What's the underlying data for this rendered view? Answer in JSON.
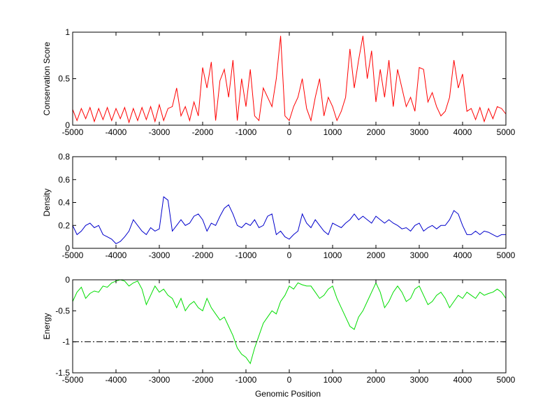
{
  "figure": {
    "xlabel": "Genomic Position"
  },
  "chart_data": [
    {
      "type": "line",
      "ylabel": "Conservation Score",
      "xlim": [
        -5000,
        5000
      ],
      "ylim": [
        0,
        1
      ],
      "xticks": [
        -5000,
        -4000,
        -3000,
        -2000,
        -1000,
        0,
        1000,
        2000,
        3000,
        4000,
        5000
      ],
      "yticks": [
        0,
        0.5,
        1
      ],
      "ytick_labels": [
        "0",
        "0.5",
        "1"
      ],
      "grid": false,
      "series": [
        {
          "color": "#ff0000",
          "x": [
            -5000,
            -4900,
            -4800,
            -4700,
            -4600,
            -4500,
            -4400,
            -4300,
            -4200,
            -4100,
            -4000,
            -3900,
            -3800,
            -3700,
            -3600,
            -3500,
            -3400,
            -3300,
            -3200,
            -3100,
            -3000,
            -2900,
            -2800,
            -2700,
            -2600,
            -2500,
            -2400,
            -2300,
            -2200,
            -2100,
            -2000,
            -1900,
            -1800,
            -1700,
            -1600,
            -1500,
            -1400,
            -1300,
            -1200,
            -1100,
            -1000,
            -900,
            -800,
            -700,
            -600,
            -500,
            -400,
            -300,
            -200,
            -100,
            0,
            100,
            200,
            300,
            400,
            500,
            600,
            700,
            800,
            900,
            1000,
            1100,
            1200,
            1300,
            1400,
            1500,
            1600,
            1700,
            1800,
            1900,
            2000,
            2100,
            2200,
            2300,
            2400,
            2500,
            2600,
            2700,
            2800,
            2900,
            3000,
            3100,
            3200,
            3300,
            3400,
            3500,
            3600,
            3700,
            3800,
            3900,
            4000,
            4100,
            4200,
            4300,
            4400,
            4500,
            4600,
            4700,
            4800,
            4900,
            5000
          ],
          "y": [
            0.17,
            0.05,
            0.18,
            0.07,
            0.19,
            0.04,
            0.18,
            0.06,
            0.19,
            0.05,
            0.18,
            0.07,
            0.19,
            0.03,
            0.18,
            0.05,
            0.19,
            0.06,
            0.2,
            0.04,
            0.22,
            0.05,
            0.18,
            0.2,
            0.4,
            0.1,
            0.2,
            0.05,
            0.25,
            0.1,
            0.62,
            0.4,
            0.68,
            0.05,
            0.48,
            0.6,
            0.3,
            0.7,
            0.05,
            0.5,
            0.2,
            0.6,
            0.1,
            0.05,
            0.4,
            0.3,
            0.2,
            0.5,
            0.96,
            0.1,
            0.05,
            0.2,
            0.3,
            0.5,
            0.18,
            0.05,
            0.3,
            0.5,
            0.1,
            0.3,
            0.2,
            0.05,
            0.15,
            0.3,
            0.82,
            0.4,
            0.7,
            0.96,
            0.5,
            0.8,
            0.25,
            0.6,
            0.3,
            0.7,
            0.2,
            0.6,
            0.4,
            0.2,
            0.3,
            0.15,
            0.62,
            0.6,
            0.25,
            0.35,
            0.2,
            0.1,
            0.15,
            0.3,
            0.7,
            0.4,
            0.55,
            0.15,
            0.18,
            0.06,
            0.19,
            0.04,
            0.18,
            0.07,
            0.2,
            0.18,
            0.12
          ]
        }
      ]
    },
    {
      "type": "line",
      "ylabel": "Density",
      "xlim": [
        -5000,
        5000
      ],
      "ylim": [
        0,
        0.8
      ],
      "xticks": [
        -5000,
        -4000,
        -3000,
        -2000,
        -1000,
        0,
        1000,
        2000,
        3000,
        4000,
        5000
      ],
      "yticks": [
        0,
        0.2,
        0.4,
        0.6,
        0.8
      ],
      "ytick_labels": [
        "0",
        "0.2",
        "0.4",
        "0.6",
        "0.8"
      ],
      "grid": false,
      "series": [
        {
          "color": "#0000cc",
          "x": [
            -5000,
            -4900,
            -4800,
            -4700,
            -4600,
            -4500,
            -4400,
            -4300,
            -4200,
            -4100,
            -4000,
            -3900,
            -3800,
            -3700,
            -3600,
            -3500,
            -3400,
            -3300,
            -3200,
            -3100,
            -3000,
            -2900,
            -2800,
            -2700,
            -2600,
            -2500,
            -2400,
            -2300,
            -2200,
            -2100,
            -2000,
            -1900,
            -1800,
            -1700,
            -1600,
            -1500,
            -1400,
            -1300,
            -1200,
            -1100,
            -1000,
            -900,
            -800,
            -700,
            -600,
            -500,
            -400,
            -300,
            -200,
            -100,
            0,
            100,
            200,
            300,
            400,
            500,
            600,
            700,
            800,
            900,
            1000,
            1100,
            1200,
            1300,
            1400,
            1500,
            1600,
            1700,
            1800,
            1900,
            2000,
            2100,
            2200,
            2300,
            2400,
            2500,
            2600,
            2700,
            2800,
            2900,
            3000,
            3100,
            3200,
            3300,
            3400,
            3500,
            3600,
            3700,
            3800,
            3900,
            4000,
            4100,
            4200,
            4300,
            4400,
            4500,
            4600,
            4700,
            4800,
            4900,
            5000
          ],
          "y": [
            0.2,
            0.12,
            0.15,
            0.2,
            0.22,
            0.18,
            0.2,
            0.12,
            0.1,
            0.08,
            0.04,
            0.06,
            0.1,
            0.15,
            0.25,
            0.2,
            0.15,
            0.12,
            0.18,
            0.15,
            0.17,
            0.45,
            0.42,
            0.15,
            0.2,
            0.25,
            0.2,
            0.22,
            0.28,
            0.3,
            0.25,
            0.15,
            0.22,
            0.2,
            0.28,
            0.35,
            0.38,
            0.3,
            0.2,
            0.18,
            0.22,
            0.2,
            0.25,
            0.18,
            0.2,
            0.28,
            0.3,
            0.12,
            0.15,
            0.1,
            0.08,
            0.12,
            0.15,
            0.3,
            0.22,
            0.18,
            0.25,
            0.2,
            0.15,
            0.12,
            0.22,
            0.2,
            0.18,
            0.22,
            0.25,
            0.3,
            0.25,
            0.28,
            0.25,
            0.22,
            0.28,
            0.25,
            0.22,
            0.25,
            0.22,
            0.2,
            0.17,
            0.18,
            0.15,
            0.2,
            0.22,
            0.15,
            0.18,
            0.2,
            0.17,
            0.2,
            0.2,
            0.25,
            0.33,
            0.3,
            0.2,
            0.12,
            0.12,
            0.15,
            0.12,
            0.15,
            0.14,
            0.12,
            0.1,
            0.12,
            0.12
          ]
        }
      ]
    },
    {
      "type": "line",
      "ylabel": "Energy",
      "xlim": [
        -5000,
        5000
      ],
      "ylim": [
        -1.5,
        0
      ],
      "xticks": [
        -5000,
        -4000,
        -3000,
        -2000,
        -1000,
        0,
        1000,
        2000,
        3000,
        4000,
        5000
      ],
      "yticks": [
        -1.5,
        -1,
        -0.5,
        0
      ],
      "ytick_labels": [
        "-1.5",
        "-1",
        "-0.5",
        "0"
      ],
      "grid": false,
      "reference_line": {
        "y": -1,
        "style": "dash-dot",
        "color": "#000000"
      },
      "series": [
        {
          "color": "#00dd00",
          "x": [
            -5000,
            -4900,
            -4800,
            -4700,
            -4600,
            -4500,
            -4400,
            -4300,
            -4200,
            -4100,
            -4000,
            -3900,
            -3800,
            -3700,
            -3600,
            -3500,
            -3400,
            -3300,
            -3200,
            -3100,
            -3000,
            -2900,
            -2800,
            -2700,
            -2600,
            -2500,
            -2400,
            -2300,
            -2200,
            -2100,
            -2000,
            -1900,
            -1800,
            -1700,
            -1600,
            -1500,
            -1400,
            -1300,
            -1200,
            -1100,
            -1000,
            -900,
            -800,
            -700,
            -600,
            -500,
            -400,
            -300,
            -200,
            -100,
            0,
            100,
            200,
            300,
            400,
            500,
            600,
            700,
            800,
            900,
            1000,
            1100,
            1200,
            1300,
            1400,
            1500,
            1600,
            1700,
            1800,
            1900,
            2000,
            2100,
            2200,
            2300,
            2400,
            2500,
            2600,
            2700,
            2800,
            2900,
            3000,
            3100,
            3200,
            3300,
            3400,
            3500,
            3600,
            3700,
            3800,
            3900,
            4000,
            4100,
            4200,
            4300,
            4400,
            4500,
            4600,
            4700,
            4800,
            4900,
            5000
          ],
          "y": [
            -0.35,
            -0.2,
            -0.12,
            -0.3,
            -0.22,
            -0.18,
            -0.2,
            -0.1,
            -0.12,
            -0.05,
            -0.02,
            0,
            -0.02,
            -0.1,
            -0.05,
            -0.02,
            -0.15,
            -0.4,
            -0.25,
            -0.1,
            -0.2,
            -0.15,
            -0.25,
            -0.3,
            -0.45,
            -0.3,
            -0.5,
            -0.4,
            -0.35,
            -0.45,
            -0.5,
            -0.3,
            -0.45,
            -0.55,
            -0.65,
            -0.6,
            -0.75,
            -0.9,
            -1.1,
            -1.2,
            -1.25,
            -1.35,
            -1.1,
            -0.9,
            -0.7,
            -0.6,
            -0.5,
            -0.55,
            -0.35,
            -0.25,
            -0.1,
            -0.15,
            -0.05,
            -0.08,
            -0.1,
            -0.1,
            -0.2,
            -0.3,
            -0.25,
            -0.15,
            -0.1,
            -0.3,
            -0.45,
            -0.6,
            -0.75,
            -0.8,
            -0.6,
            -0.5,
            -0.35,
            -0.2,
            -0.05,
            -0.2,
            -0.45,
            -0.35,
            -0.2,
            -0.1,
            -0.2,
            -0.35,
            -0.3,
            -0.15,
            -0.1,
            -0.25,
            -0.4,
            -0.35,
            -0.25,
            -0.2,
            -0.3,
            -0.45,
            -0.35,
            -0.25,
            -0.3,
            -0.2,
            -0.25,
            -0.3,
            -0.2,
            -0.25,
            -0.22,
            -0.2,
            -0.15,
            -0.2,
            -0.3
          ]
        }
      ]
    }
  ]
}
